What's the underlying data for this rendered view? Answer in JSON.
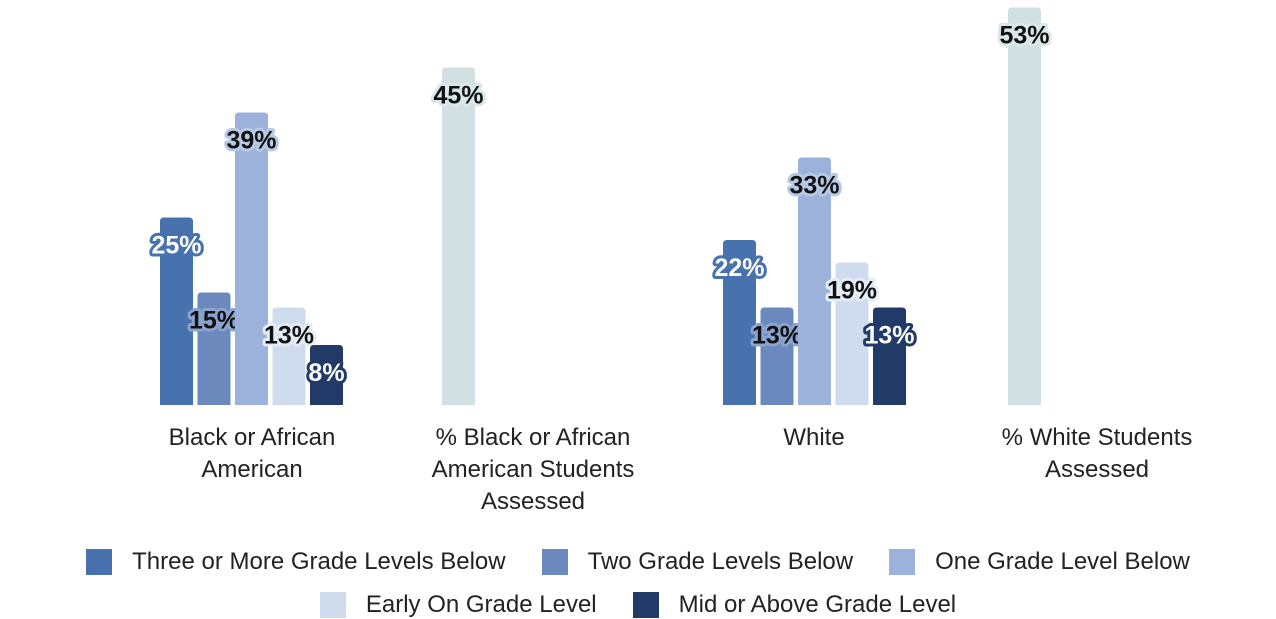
{
  "chart_data": {
    "type": "bar",
    "ylim": [
      0,
      55
    ],
    "grid": false,
    "legend_position": "bottom",
    "groups": [
      {
        "label_lines": [
          "Black or African",
          "American"
        ],
        "bars": [
          {
            "series": "Three or More Grade Levels Below",
            "value": 25,
            "label": "25%"
          },
          {
            "series": "Two Grade Levels Below",
            "value": 15,
            "label": "15%"
          },
          {
            "series": "One Grade Level Below",
            "value": 39,
            "label": "39%"
          },
          {
            "series": "Early On Grade Level",
            "value": 13,
            "label": "13%"
          },
          {
            "series": "Mid or Above Grade Level",
            "value": 8,
            "label": "8%"
          }
        ]
      },
      {
        "label_lines": [
          "% Black or African",
          "American Students",
          "Assessed"
        ],
        "bars": [
          {
            "series": "assessed",
            "value": 45,
            "label": "45%"
          }
        ]
      },
      {
        "label_lines": [
          "White"
        ],
        "bars": [
          {
            "series": "Three or More Grade Levels Below",
            "value": 22,
            "label": "22%"
          },
          {
            "series": "Two Grade Levels Below",
            "value": 13,
            "label": "13%"
          },
          {
            "series": "One Grade Level Below",
            "value": 33,
            "label": "33%"
          },
          {
            "series": "Early On Grade Level",
            "value": 19,
            "label": "19%"
          },
          {
            "series": "Mid or Above Grade Level",
            "value": 13,
            "label": "13%"
          }
        ]
      },
      {
        "label_lines": [
          "% White Students",
          "Assessed"
        ],
        "bars": [
          {
            "series": "assessed",
            "value": 53,
            "label": "53%"
          }
        ]
      }
    ],
    "series_colors": {
      "Three or More Grade Levels Below": "#4772ae",
      "Two Grade Levels Below": "#6b89bd",
      "One Grade Level Below": "#9cb2da",
      "Early On Grade Level": "#cfdcee",
      "Mid or Above Grade Level": "#223a68",
      "assessed": "#d1e1e3"
    },
    "label_styles": {
      "Three or More Grade Levels Below": {
        "fill": "#ffffff",
        "stroke": "#4772ae"
      },
      "Two Grade Levels Below": {
        "fill": "#111111",
        "stroke": "#8aa3cf"
      },
      "One Grade Level Below": {
        "fill": "#111111",
        "stroke": "#b8c9e6"
      },
      "Early On Grade Level": {
        "fill": "#111111",
        "stroke": "#e4ecf6"
      },
      "Mid or Above Grade Level": {
        "fill": "#ffffff",
        "stroke": "#223a68"
      },
      "assessed": {
        "fill": "#111111",
        "stroke": "#dbe8ea"
      }
    }
  },
  "legend": {
    "items": [
      {
        "label": "Three or More Grade Levels Below",
        "color": "#4772ae"
      },
      {
        "label": "Two Grade Levels Below",
        "color": "#6b89bd"
      },
      {
        "label": "One Grade Level Below",
        "color": "#9cb2da"
      },
      {
        "label": "Early On Grade Level",
        "color": "#cfdcee"
      },
      {
        "label": "Mid or Above Grade Level",
        "color": "#223a68"
      }
    ]
  }
}
